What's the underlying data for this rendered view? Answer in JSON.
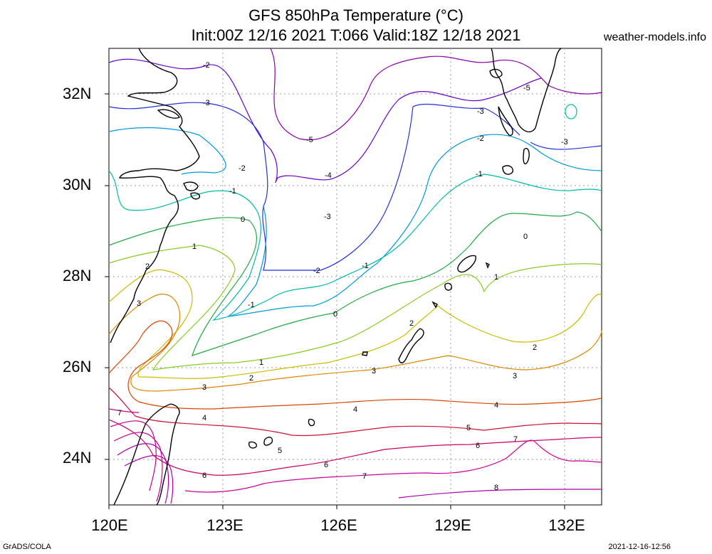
{
  "title": {
    "line1": "GFS 850hPa Temperature (°C)",
    "line2": "Init:00Z 12/16 2021 T:066 Valid:18Z 12/18 2021"
  },
  "site": "weather-models.info",
  "footer": {
    "left": "GrADS/COLA",
    "right": "2021-12-16-12:56"
  },
  "map": {
    "lon_range": [
      120,
      133
    ],
    "lat_range": [
      23,
      33
    ],
    "x_ticks": [
      "120E",
      "123E",
      "126E",
      "129E",
      "132E"
    ],
    "y_ticks": [
      "32N",
      "30N",
      "28N",
      "26N",
      "24N"
    ],
    "grid": true,
    "contour_interval": 1,
    "contour_labels": [
      "-5",
      "-4",
      "-3",
      "-2",
      "-1",
      "0",
      "1",
      "2",
      "3",
      "4",
      "5",
      "6",
      "7",
      "8"
    ],
    "colors": {
      "m5": "#8800aa",
      "m4": "#6a00c8",
      "m3": "#2233dd",
      "m2": "#0099dd",
      "m1": "#00bbaa",
      "z0": "#22aa44",
      "p1": "#88cc22",
      "p2": "#ccbb00",
      "p3": "#dd8800",
      "p4": "#dd4400",
      "p5": "#cc1133",
      "p6": "#cc0066",
      "p7": "#cc0099",
      "p8": "#aa00aa"
    }
  }
}
